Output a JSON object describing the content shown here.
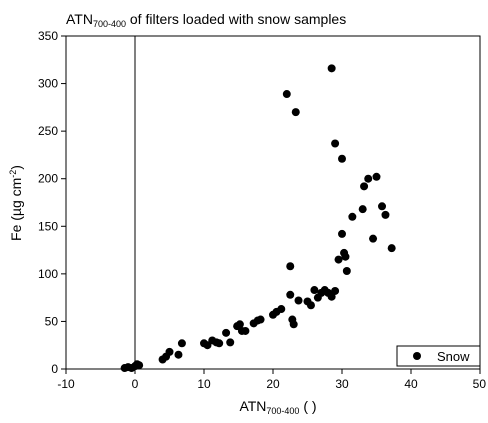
{
  "chart_data": {
    "type": "scatter",
    "title": {
      "main": "ATN",
      "sub": "700-400",
      "rest": " of filters loaded with snow samples"
    },
    "xlabel": {
      "main": "ATN",
      "sub": "700-400",
      "rest": " ( )"
    },
    "ylabel": {
      "before": "Fe (µg cm",
      "sup": "-2",
      "after": ")"
    },
    "xlim": [
      -10,
      50
    ],
    "ylim": [
      0,
      350
    ],
    "xticks": [
      -10,
      0,
      10,
      20,
      30,
      40,
      50
    ],
    "yticks": [
      0,
      50,
      100,
      150,
      200,
      250,
      300,
      350
    ],
    "vertical_reference_line_x": 0,
    "grid": false,
    "legend": {
      "position": "bottom-right",
      "entries": [
        "Snow"
      ]
    },
    "marker_color": "#000000",
    "series": [
      {
        "name": "Snow",
        "points": [
          [
            -1.5,
            1
          ],
          [
            -1.0,
            2
          ],
          [
            -0.5,
            1
          ],
          [
            0,
            3
          ],
          [
            0.3,
            5
          ],
          [
            0.6,
            4
          ],
          [
            4,
            10
          ],
          [
            4.5,
            13
          ],
          [
            5,
            18
          ],
          [
            6.3,
            15
          ],
          [
            6.8,
            27
          ],
          [
            10,
            27
          ],
          [
            10.5,
            25
          ],
          [
            11.2,
            30
          ],
          [
            11.8,
            28
          ],
          [
            12.2,
            27
          ],
          [
            13.2,
            38
          ],
          [
            13.8,
            28
          ],
          [
            14.8,
            45
          ],
          [
            15.2,
            47
          ],
          [
            15.5,
            40
          ],
          [
            16,
            40
          ],
          [
            17.2,
            48
          ],
          [
            17.8,
            51
          ],
          [
            18.2,
            52
          ],
          [
            20,
            57
          ],
          [
            20.5,
            60
          ],
          [
            21.2,
            63
          ],
          [
            22.5,
            78
          ],
          [
            22.5,
            108
          ],
          [
            23,
            47
          ],
          [
            22.8,
            52
          ],
          [
            23.7,
            72
          ],
          [
            25,
            71
          ],
          [
            25.5,
            67
          ],
          [
            26,
            83
          ],
          [
            26.5,
            75
          ],
          [
            27,
            80
          ],
          [
            27.5,
            83
          ],
          [
            28,
            80
          ],
          [
            28.5,
            76
          ],
          [
            29,
            82
          ],
          [
            29.5,
            115
          ],
          [
            30,
            142
          ],
          [
            30.3,
            122
          ],
          [
            30.7,
            103
          ],
          [
            30.5,
            118
          ],
          [
            31.5,
            160
          ],
          [
            33,
            168
          ],
          [
            33.2,
            192
          ],
          [
            33.8,
            200
          ],
          [
            34.5,
            137
          ],
          [
            35,
            202
          ],
          [
            35.8,
            171
          ],
          [
            36.3,
            162
          ],
          [
            37.2,
            127
          ],
          [
            22,
            289
          ],
          [
            23.3,
            270
          ],
          [
            28.5,
            316
          ],
          [
            29,
            237
          ],
          [
            30,
            221
          ]
        ]
      }
    ]
  }
}
